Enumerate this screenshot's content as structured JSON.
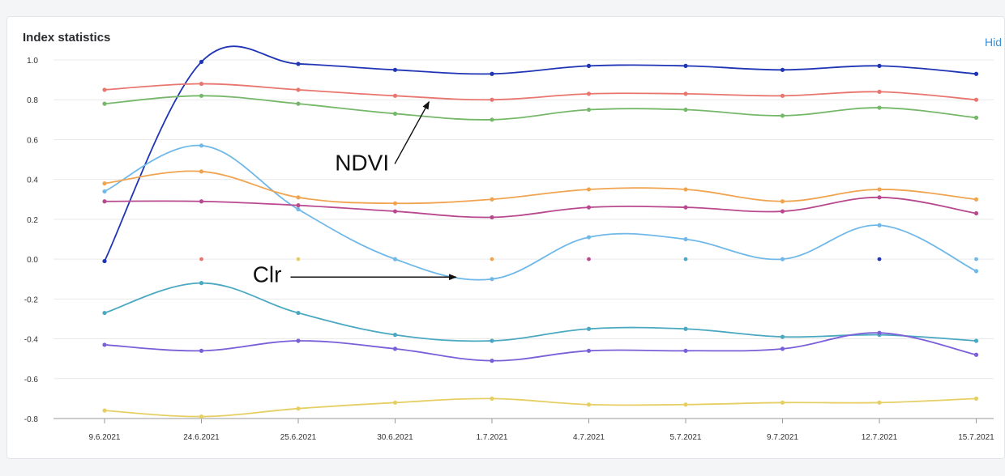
{
  "header": {
    "title": "Index statistics",
    "hide_label": "Hid"
  },
  "chart_data": {
    "type": "line",
    "title": "Index statistics",
    "categories": [
      "9.6.2021",
      "24.6.2021",
      "25.6.2021",
      "30.6.2021",
      "1.7.2021",
      "4.7.2021",
      "5.7.2021",
      "9.7.2021",
      "12.7.2021",
      "15.7.2021"
    ],
    "ylim": [
      -0.8,
      1.0
    ],
    "yticks": [
      "1.0",
      "0.8",
      "0.6",
      "0.4",
      "0.2",
      "0.0",
      "-0.2",
      "-0.4",
      "-0.6",
      "-0.8"
    ],
    "ytick_values": [
      1.0,
      0.8,
      0.6,
      0.4,
      0.2,
      0.0,
      -0.2,
      -0.4,
      -0.6,
      -0.8
    ],
    "grid": true,
    "series": [
      {
        "color": "#1f35b5",
        "values": [
          -0.01,
          0.99,
          0.98,
          0.95,
          0.93,
          0.97,
          0.97,
          0.95,
          0.97,
          0.93
        ]
      },
      {
        "color": "#e8766f",
        "values": [
          0.85,
          0.88,
          0.85,
          0.82,
          0.8,
          0.83,
          0.83,
          0.82,
          0.84,
          0.8
        ]
      },
      {
        "color": "#76b86a",
        "values": [
          0.78,
          0.82,
          0.78,
          0.73,
          0.7,
          0.75,
          0.75,
          0.72,
          0.76,
          0.71
        ]
      },
      {
        "color": "#70b8e8",
        "values": [
          0.34,
          0.57,
          0.25,
          0.0,
          -0.1,
          0.11,
          0.1,
          0.0,
          0.17,
          -0.06
        ]
      },
      {
        "color": "#f0a450",
        "values": [
          0.38,
          0.44,
          0.31,
          0.28,
          0.3,
          0.35,
          0.35,
          0.29,
          0.35,
          0.3
        ]
      },
      {
        "color": "#b9498e",
        "values": [
          0.29,
          0.29,
          0.27,
          0.24,
          0.21,
          0.26,
          0.26,
          0.24,
          0.31,
          0.23
        ]
      },
      {
        "color": "#4aa8c0",
        "values": [
          -0.27,
          -0.12,
          -0.27,
          -0.38,
          -0.41,
          -0.35,
          -0.35,
          -0.39,
          -0.38,
          -0.41
        ]
      },
      {
        "color": "#7a5fd8",
        "values": [
          -0.43,
          -0.46,
          -0.41,
          -0.45,
          -0.51,
          -0.46,
          -0.46,
          -0.45,
          -0.37,
          -0.48
        ]
      },
      {
        "color": "#e5cf64",
        "values": [
          -0.76,
          -0.79,
          -0.75,
          -0.72,
          -0.7,
          -0.73,
          -0.73,
          -0.72,
          -0.72,
          -0.7
        ]
      }
    ],
    "zero_markers": [
      {
        "x_index": 1,
        "color": "#e8766f"
      },
      {
        "x_index": 2,
        "color": "#e5cf64"
      },
      {
        "x_index": 4,
        "color": "#f0a450"
      },
      {
        "x_index": 5,
        "color": "#b9498e"
      },
      {
        "x_index": 6,
        "color": "#4aa8c0"
      },
      {
        "x_index": 8,
        "color": "#1f35b5"
      },
      {
        "x_index": 9,
        "color": "#70b8e8"
      }
    ],
    "annotations": [
      {
        "text": "NDVI",
        "x_index": 2.98,
        "y": 0.47,
        "target_x_index": 3.35,
        "target_y": 0.79
      },
      {
        "text": "Clr",
        "x_index": 1.87,
        "y": -0.09,
        "target_x_index": 3.63,
        "target_y": -0.09
      }
    ]
  }
}
